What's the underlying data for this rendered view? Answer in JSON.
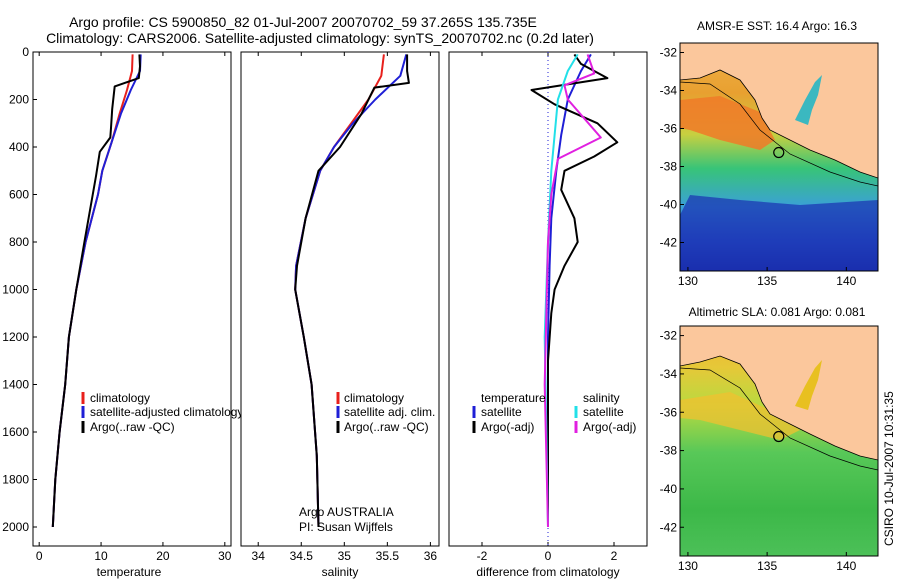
{
  "title": {
    "line1": "Argo profile: CS 5900850_82 01-Jul-2007 20070702_59 37.265S 135.735E",
    "line2": "Climatology: CARS2006. Satellite-adjusted climatology: synTS_20070702.nc (0.2d later)"
  },
  "credit": "CSIRO 10-Jul-2007 10:31:35",
  "argo_info": {
    "line1": "Argo AUSTRALIA",
    "line2": "PI: Susan Wijffels"
  },
  "colors": {
    "climatology": "#e8201c",
    "satellite": "#1f1fd6",
    "argo": "#000000",
    "salinity_satellite": "#22e0e8",
    "salinity_argo": "#e020e0",
    "land": "#fbc79c"
  },
  "chart_data": [
    {
      "type": "line",
      "name": "temperature-profile",
      "xlabel": "temperature",
      "ylabel": "",
      "xlim": [
        -1,
        31
      ],
      "ylim": [
        2080,
        0
      ],
      "xticks": [
        0,
        10,
        20,
        30
      ],
      "yticks": [
        0,
        200,
        400,
        600,
        800,
        1000,
        1200,
        1400,
        1600,
        1800,
        2000
      ],
      "legend": [
        "climatology",
        "satellite-adjusted climatology",
        "Argo(..raw -QC)"
      ],
      "series": [
        {
          "name": "climatology",
          "color": "#e8201c",
          "x": [
            15.1,
            15.0,
            14.2,
            13.0,
            11.7,
            10.2,
            9.5,
            7.5,
            6.0,
            4.8,
            4.2,
            3.3,
            2.6,
            2.2
          ],
          "depth": [
            10,
            80,
            160,
            260,
            380,
            500,
            600,
            800,
            1000,
            1200,
            1400,
            1600,
            1800,
            2000
          ]
        },
        {
          "name": "satellite-adjusted climatology",
          "color": "#1f1fd6",
          "x": [
            16.4,
            16.3,
            14.8,
            13.2,
            11.7,
            10.2,
            9.5,
            7.5,
            6.0,
            4.8,
            4.2,
            3.3,
            2.6,
            2.2
          ],
          "depth": [
            10,
            80,
            160,
            260,
            380,
            500,
            600,
            800,
            1000,
            1200,
            1400,
            1600,
            1800,
            2000
          ]
        },
        {
          "name": "Argo(..raw -QC)",
          "color": "#000000",
          "x": [
            16.2,
            16.3,
            16.1,
            12.2,
            11.8,
            11.6,
            11.5,
            9.8,
            9.2,
            7.3,
            6.0,
            4.8,
            4.2,
            3.3,
            2.6,
            2.2
          ],
          "depth": [
            10,
            60,
            110,
            145,
            240,
            320,
            360,
            420,
            520,
            800,
            1000,
            1200,
            1400,
            1600,
            1800,
            2000
          ]
        }
      ]
    },
    {
      "type": "line",
      "name": "salinity-profile",
      "xlabel": "salinity",
      "ylabel": "",
      "xlim": [
        33.8,
        36.1
      ],
      "ylim": [
        2080,
        0
      ],
      "xticks": [
        34,
        34.5,
        35,
        35.5,
        36
      ],
      "legend": [
        "climatology",
        "satellite adj. clim.",
        "Argo(..raw -QC)"
      ],
      "series": [
        {
          "name": "climatology",
          "color": "#e8201c",
          "x": [
            35.46,
            35.43,
            35.28,
            35.08,
            34.88,
            34.72,
            34.55,
            34.44,
            34.43,
            34.53,
            34.62,
            34.68,
            34.7
          ],
          "depth": [
            10,
            100,
            200,
            300,
            400,
            500,
            700,
            900,
            1000,
            1200,
            1400,
            1700,
            2000
          ]
        },
        {
          "name": "satellite adj. clim.",
          "color": "#1f1fd6",
          "x": [
            35.72,
            35.65,
            35.36,
            35.1,
            34.88,
            34.72,
            34.55,
            34.44,
            34.43,
            34.53,
            34.62,
            34.68,
            34.7
          ],
          "depth": [
            10,
            100,
            200,
            300,
            400,
            500,
            700,
            900,
            1000,
            1200,
            1400,
            1700,
            2000
          ]
        },
        {
          "name": "Argo(..raw -QC)",
          "color": "#000000",
          "x": [
            35.73,
            35.73,
            35.75,
            35.35,
            35.2,
            34.95,
            34.7,
            34.55,
            34.45,
            34.43,
            34.53,
            34.62,
            34.68,
            34.7
          ],
          "depth": [
            10,
            80,
            130,
            150,
            260,
            400,
            500,
            700,
            900,
            1000,
            1200,
            1400,
            1700,
            2000
          ]
        }
      ]
    },
    {
      "type": "line",
      "name": "difference-profile",
      "xlabel": "difference from climatology",
      "ylabel": "",
      "xlim": [
        -3,
        3
      ],
      "ylim": [
        2080,
        0
      ],
      "xticks": [
        -2,
        0,
        2
      ],
      "legend_temperature": [
        "temperature",
        "satellite",
        "Argo(-adj)"
      ],
      "legend_salinity": [
        "salinity",
        "satellite",
        "Argo(-adj)"
      ],
      "series": [
        {
          "name": "temperature satellite",
          "color": "#1f1fd6",
          "x": [
            1.3,
            1.0,
            0.6,
            0.4,
            0.25,
            0.1,
            0.05,
            0.0,
            0.0
          ],
          "depth": [
            10,
            80,
            200,
            350,
            500,
            700,
            900,
            1200,
            2000
          ]
        },
        {
          "name": "temperature Argo(-adj)",
          "color": "#000000",
          "x": [
            0.8,
            1.0,
            1.8,
            -0.5,
            0.2,
            1.5,
            2.1,
            1.4,
            0.5,
            0.4,
            0.8,
            0.9,
            0.5,
            0.2,
            0.1,
            0.0,
            0.0,
            0.0
          ],
          "depth": [
            10,
            50,
            110,
            160,
            220,
            300,
            380,
            440,
            500,
            580,
            700,
            800,
            900,
            1000,
            1100,
            1300,
            1600,
            2000
          ]
        },
        {
          "name": "salinity satellite",
          "color": "#22e0e8",
          "x": [
            0.9,
            0.6,
            0.3,
            0.1,
            0.0,
            -0.1,
            0.0
          ],
          "depth": [
            10,
            80,
            200,
            500,
            800,
            1200,
            2000
          ]
        },
        {
          "name": "salinity Argo(-adj)",
          "color": "#e020e0",
          "x": [
            1.2,
            1.4,
            0.5,
            0.6,
            1.6,
            0.3,
            0.1,
            0.0,
            -0.1,
            0.0
          ],
          "depth": [
            10,
            90,
            140,
            200,
            360,
            450,
            600,
            800,
            1400,
            2000
          ]
        }
      ]
    },
    {
      "type": "heatmap",
      "name": "sst-map",
      "title": "AMSR-E SST: 16.4 Argo: 16.3",
      "xlim": [
        129.5,
        142
      ],
      "ylim": [
        -43.5,
        -31.5
      ],
      "xticks": [
        130,
        135,
        140
      ],
      "yticks": [
        -32,
        -34,
        -36,
        -38,
        -40,
        -42
      ],
      "argo_position": {
        "lon": 135.735,
        "lat": -37.265
      }
    },
    {
      "type": "heatmap",
      "name": "sla-map",
      "title": "Altimetric SLA: 0.081 Argo: 0.081",
      "xlim": [
        129.5,
        142
      ],
      "ylim": [
        -43.5,
        -31.5
      ],
      "xticks": [
        130,
        135,
        140
      ],
      "yticks": [
        -32,
        -34,
        -36,
        -38,
        -40,
        -42
      ],
      "argo_position": {
        "lon": 135.735,
        "lat": -37.265
      }
    }
  ]
}
